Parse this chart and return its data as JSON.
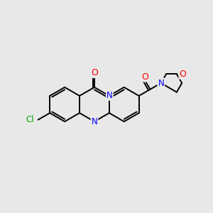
{
  "background_color": "#e8e8e8",
  "bond_color": "#000000",
  "atom_colors": {
    "N": "#0000ff",
    "O": "#ff0000",
    "Cl": "#00aa00",
    "C": "#000000"
  },
  "figsize": [
    3.0,
    3.0
  ],
  "dpi": 100,
  "lw": 1.4,
  "fs": 8.5
}
